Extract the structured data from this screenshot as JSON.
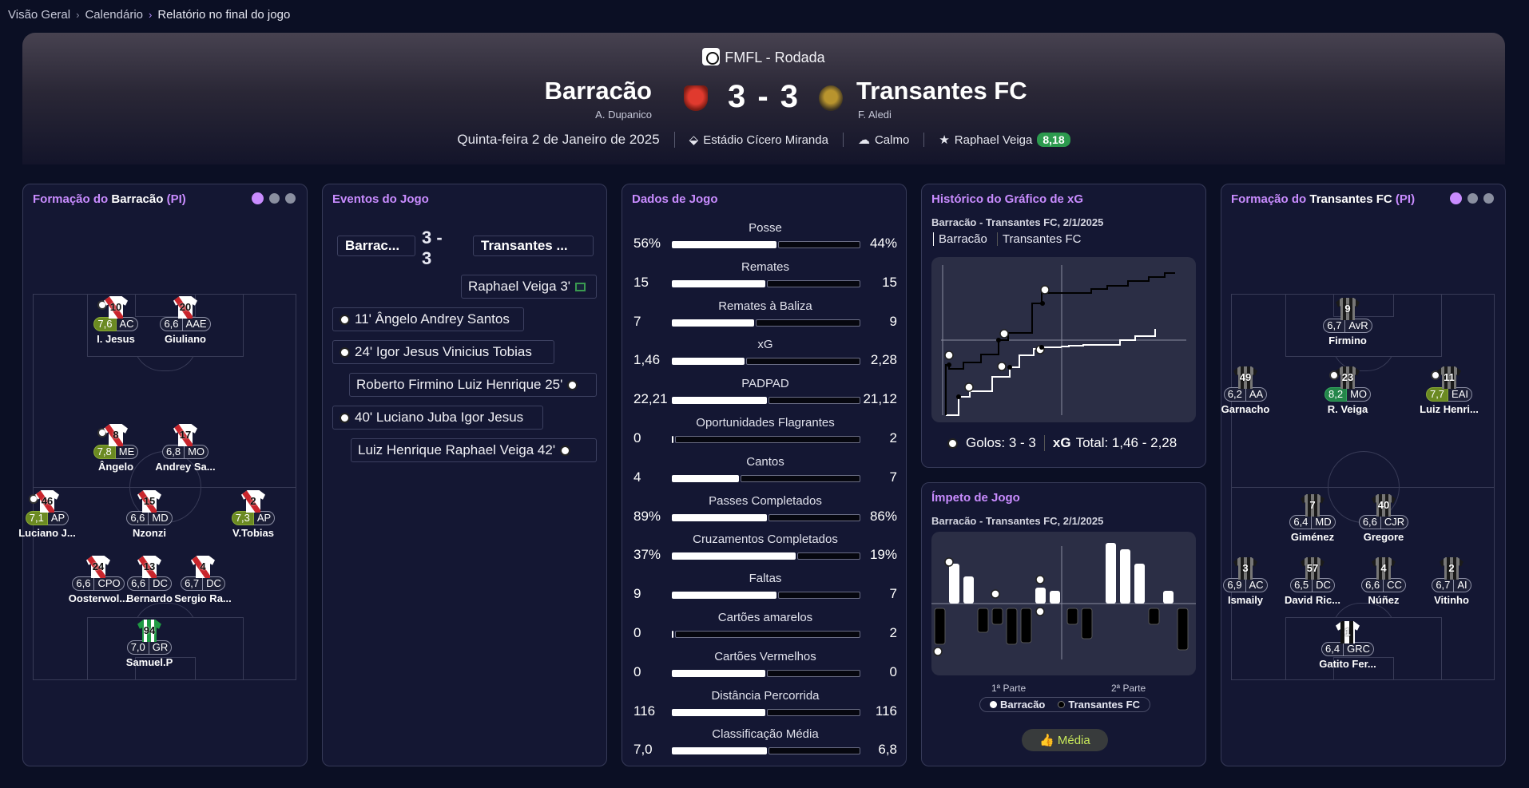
{
  "breadcrumb": [
    "Visão Geral",
    "Calendário",
    "Relatório no final do jogo"
  ],
  "header": {
    "competition": "FMFL - Rodada",
    "home": {
      "name": "Barracão",
      "coach": "A. Dupanico"
    },
    "away": {
      "name": "Transantes FC",
      "coach": "F. Aledi"
    },
    "score": "3 - 3",
    "date": "Quinta-feira 2 de Janeiro de 2025",
    "stadium": "Estádio Cícero Miranda",
    "weather": "Calmo",
    "mvp": "Raphael Veiga",
    "mvp_rating": "8,18"
  },
  "home_lineup": {
    "title_prefix": "Formação do",
    "team": "Barracão",
    "suffix": "(PI)",
    "players": [
      {
        "num": "10",
        "rating": "7,6",
        "pos": "AC",
        "name": "I. Jesus",
        "kit": "red",
        "tier": "g1",
        "goal": true
      },
      {
        "num": "20",
        "rating": "6,6",
        "pos": "AAE",
        "name": "Giuliano",
        "kit": "red",
        "tier": ""
      },
      {
        "num": "8",
        "rating": "7,8",
        "pos": "ME",
        "name": "Ângelo",
        "kit": "red",
        "tier": "g1",
        "goal": true
      },
      {
        "num": "17",
        "rating": "6,8",
        "pos": "MO",
        "name": "Andrey Sa...",
        "kit": "red",
        "tier": ""
      },
      {
        "num": "46",
        "rating": "7,1",
        "pos": "AP",
        "name": "Luciano J...",
        "kit": "red",
        "tier": "g1",
        "goal": true
      },
      {
        "num": "15",
        "rating": "6,6",
        "pos": "MD",
        "name": "Nzonzi",
        "kit": "red",
        "tier": ""
      },
      {
        "num": "2",
        "rating": "7,3",
        "pos": "AP",
        "name": "V.Tobias",
        "kit": "red",
        "tier": "g1"
      },
      {
        "num": "24",
        "rating": "6,6",
        "pos": "CPO",
        "name": "Oosterwol...",
        "kit": "red",
        "tier": ""
      },
      {
        "num": "13",
        "rating": "6,6",
        "pos": "DC",
        "name": "Bernardo",
        "kit": "red",
        "tier": ""
      },
      {
        "num": "4",
        "rating": "6,7",
        "pos": "DC",
        "name": "Sergio Ra...",
        "kit": "red",
        "tier": ""
      },
      {
        "num": "94",
        "rating": "7,0",
        "pos": "GR",
        "name": "Samuel.P",
        "kit": "gk",
        "tier": ""
      }
    ]
  },
  "away_lineup": {
    "title_prefix": "Formação do",
    "team": "Transantes FC",
    "suffix": "(PI)",
    "players": [
      {
        "num": "9",
        "rating": "6,7",
        "pos": "AvR",
        "name": "Firmino",
        "kit": "black",
        "tier": ""
      },
      {
        "num": "49",
        "rating": "6,2",
        "pos": "AA",
        "name": "Garnacho",
        "kit": "black",
        "tier": ""
      },
      {
        "num": "23",
        "rating": "8,2",
        "pos": "MO",
        "name": "R. Veiga",
        "kit": "black",
        "tier": "g2",
        "goal": true
      },
      {
        "num": "11",
        "rating": "7,7",
        "pos": "EAI",
        "name": "Luiz Henri...",
        "kit": "black",
        "tier": "g1",
        "goal": true
      },
      {
        "num": "7",
        "rating": "6,4",
        "pos": "MD",
        "name": "Giménez",
        "kit": "black",
        "tier": ""
      },
      {
        "num": "40",
        "rating": "6,6",
        "pos": "CJR",
        "name": "Gregore",
        "kit": "black",
        "tier": ""
      },
      {
        "num": "3",
        "rating": "6,9",
        "pos": "AC",
        "name": "Ismaily",
        "kit": "black",
        "tier": ""
      },
      {
        "num": "57",
        "rating": "6,5",
        "pos": "DC",
        "name": "David Ric...",
        "kit": "black",
        "tier": ""
      },
      {
        "num": "4",
        "rating": "6,6",
        "pos": "CC",
        "name": "Núñez",
        "kit": "black",
        "tier": ""
      },
      {
        "num": "2",
        "rating": "6,7",
        "pos": "AI",
        "name": "Vitinho",
        "kit": "black",
        "tier": ""
      },
      {
        "num": "1",
        "rating": "6,4",
        "pos": "GRC",
        "name": "Gatito Fer...",
        "kit": "bw",
        "tier": ""
      }
    ]
  },
  "events": {
    "title": "Eventos do Jogo",
    "home": "Barrac...",
    "away": "Transantes ...",
    "score_top": "3 -",
    "score_bottom": "3",
    "items": [
      {
        "text": "Raphael Veiga 3'",
        "side": "away",
        "icon": "red"
      },
      {
        "text": "11' Ângelo Andrey Santos",
        "side": "home",
        "icon": "goal"
      },
      {
        "text": "24' Igor Jesus Vinicius Tobias",
        "side": "home",
        "icon": "goal"
      },
      {
        "text": "Roberto Firmino Luiz Henrique 25'",
        "side": "away",
        "icon": "goal"
      },
      {
        "text": "40' Luciano Juba Igor Jesus",
        "side": "home",
        "icon": "goal"
      },
      {
        "text": "Luiz Henrique Raphael Veiga 42'",
        "side": "away",
        "icon": "goal"
      }
    ]
  },
  "stats": {
    "title": "Dados de Jogo",
    "rows": [
      {
        "label": "Posse",
        "home": "56%",
        "away": "44%",
        "share": 0.56
      },
      {
        "label": "Remates",
        "home": "15",
        "away": "15",
        "share": 0.5
      },
      {
        "label": "Remates à Baliza",
        "home": "7",
        "away": "9",
        "share": 0.44
      },
      {
        "label": "xG",
        "home": "1,46",
        "away": "2,28",
        "share": 0.39
      },
      {
        "label": "PADPAD",
        "home": "22,21",
        "away": "21,12",
        "share": 0.51
      },
      {
        "label": "Oportunidades Flagrantes",
        "home": "0",
        "away": "2",
        "share": 0.0
      },
      {
        "label": "Cantos",
        "home": "4",
        "away": "7",
        "share": 0.36
      },
      {
        "label": "Passes Completados",
        "home": "89%",
        "away": "86%",
        "share": 0.51
      },
      {
        "label": "Cruzamentos Completados",
        "home": "37%",
        "away": "19%",
        "share": 0.66
      },
      {
        "label": "Faltas",
        "home": "9",
        "away": "7",
        "share": 0.56
      },
      {
        "label": "Cartões amarelos",
        "home": "0",
        "away": "2",
        "share": 0.0
      },
      {
        "label": "Cartões Vermelhos",
        "home": "0",
        "away": "0",
        "share": 0.5
      },
      {
        "label": "Distância Percorrida",
        "home": "116",
        "away": "116",
        "share": 0.5
      },
      {
        "label": "Classificação Média",
        "home": "7,0",
        "away": "6,8",
        "share": 0.51
      }
    ]
  },
  "xg": {
    "title": "Histórico do Gráfico de xG",
    "subtitle": "Barracão - Transantes FC, 2/1/2025",
    "tabs": [
      "Barracão",
      "Transantes FC"
    ],
    "goals_label": "Golos: 3 - 3",
    "xg_label": "xG",
    "total_label": "Total: 1,46 - 2,28"
  },
  "momentum": {
    "title": "Ímpeto de Jogo",
    "subtitle": "Barracão - Transantes FC, 2/1/2025",
    "first_half": "1ª Parte",
    "second_half": "2ª Parte",
    "legend_home": "Barracão",
    "legend_away": "Transantes FC",
    "button": "Média"
  }
}
